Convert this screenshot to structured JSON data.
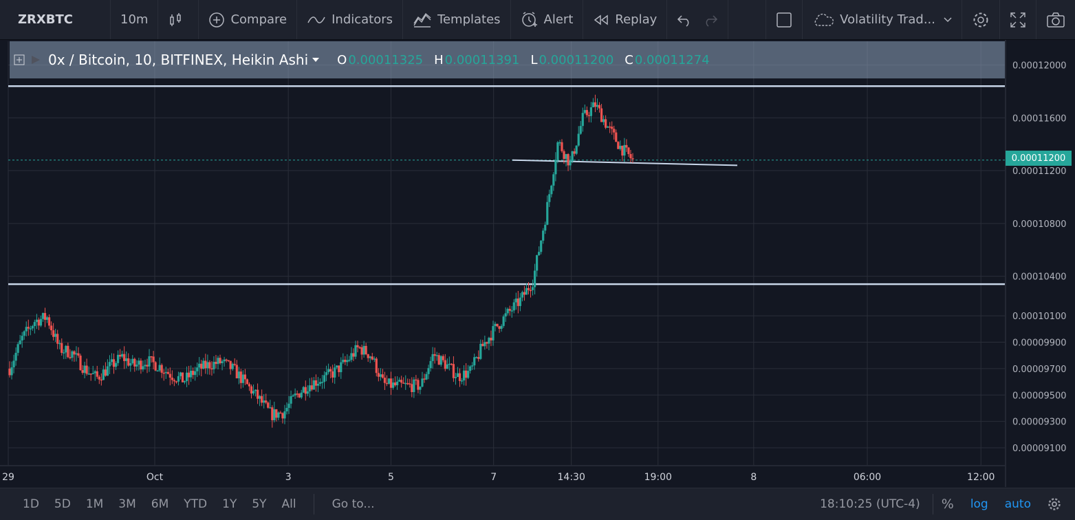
{
  "toolbar": {
    "symbol": "ZRXBTC",
    "interval": "10m",
    "compare": "Compare",
    "indicators": "Indicators",
    "templates": "Templates",
    "alert": "Alert",
    "replay": "Replay",
    "layout_name": "Volatility Trad..."
  },
  "legend": {
    "title": "0x / Bitcoin, 10, BITFINEX, Heikin Ashi",
    "o_label": "O",
    "o_value": "0.00011325",
    "h_label": "H",
    "h_value": "0.00011391",
    "l_label": "L",
    "l_value": "0.00011200",
    "c_label": "C",
    "c_value": "0.00011274"
  },
  "price_tag": "0.00011200",
  "bottom": {
    "ranges": [
      "1D",
      "5D",
      "1M",
      "3M",
      "6M",
      "YTD",
      "1Y",
      "5Y",
      "All"
    ],
    "goto": "Go to...",
    "clock": "18:10:25 (UTC-4)",
    "percent": "%",
    "log": "log",
    "auto": "auto"
  },
  "colors": {
    "up": "#26a69a",
    "down": "#ef5350",
    "background": "#131722",
    "grid": "#2a2e39",
    "line": "#c9d7ea",
    "accent": "#2196f3"
  },
  "chart_data": {
    "type": "candlestick",
    "title": "0x / Bitcoin, 10, BITFINEX, Heikin Ashi",
    "y_ticks": [
      "0.00012000",
      "0.00011600",
      "0.00011200",
      "0.00010800",
      "0.00010400",
      "0.00010100",
      "0.00009900",
      "0.00009700",
      "0.00009500",
      "0.00009300",
      "0.00009100"
    ],
    "y_tick_values": [
      0.00012,
      0.000116,
      0.000112,
      0.000108,
      0.000104,
      0.000101,
      9.9e-05,
      9.7e-05,
      9.5e-05,
      9.3e-05,
      9.1e-05
    ],
    "x_ticks": [
      "29",
      "Oct",
      "3",
      "5",
      "7",
      "14:30",
      "19:00",
      "8",
      "06:00",
      "12:00"
    ],
    "ylim": [
      8.97e-05,
      0.0001218
    ],
    "horizontal_levels": [
      0.0001184,
      0.0001034
    ],
    "trendline": [
      [
        0.0001128
      ],
      [
        0.0001124
      ]
    ],
    "last_price_line": 0.0001128,
    "series": [
      {
        "x": 0,
        "close": 9.7e-05
      },
      {
        "x": 1,
        "close": 9.93e-05
      },
      {
        "x": 2,
        "close": 0.0001006
      },
      {
        "x": 3,
        "close": 0.0001009
      },
      {
        "x": 4,
        "close": 9.85e-05
      },
      {
        "x": 5,
        "close": 9.82e-05
      },
      {
        "x": 6,
        "close": 9.7e-05
      },
      {
        "x": 7,
        "close": 9.63e-05
      },
      {
        "x": 8,
        "close": 9.71e-05
      },
      {
        "x": 9,
        "close": 9.79e-05
      },
      {
        "x": 10,
        "close": 9.72e-05
      },
      {
        "x": 11,
        "close": 9.76e-05
      },
      {
        "x": 12,
        "close": 9.72e-05
      },
      {
        "x": 13,
        "close": 9.65e-05
      },
      {
        "x": 14,
        "close": 9.61e-05
      },
      {
        "x": 15,
        "close": 9.69e-05
      },
      {
        "x": 16,
        "close": 9.73e-05
      },
      {
        "x": 17,
        "close": 9.75e-05
      },
      {
        "x": 18,
        "close": 9.69e-05
      },
      {
        "x": 19,
        "close": 9.58e-05
      },
      {
        "x": 20,
        "close": 9.47e-05
      },
      {
        "x": 21,
        "close": 9.35e-05
      },
      {
        "x": 22,
        "close": 9.37e-05
      },
      {
        "x": 23,
        "close": 9.5e-05
      },
      {
        "x": 24,
        "close": 9.58e-05
      },
      {
        "x": 25,
        "close": 9.62e-05
      },
      {
        "x": 26,
        "close": 9.67e-05
      },
      {
        "x": 27,
        "close": 9.75e-05
      },
      {
        "x": 28,
        "close": 9.86e-05
      },
      {
        "x": 29,
        "close": 9.8e-05
      },
      {
        "x": 30,
        "close": 9.58e-05
      },
      {
        "x": 31,
        "close": 9.57e-05
      },
      {
        "x": 32,
        "close": 9.57e-05
      },
      {
        "x": 33,
        "close": 9.57e-05
      },
      {
        "x": 34,
        "close": 9.81e-05
      },
      {
        "x": 35,
        "close": 9.73e-05
      },
      {
        "x": 36,
        "close": 9.64e-05
      },
      {
        "x": 37,
        "close": 9.68e-05
      },
      {
        "x": 38,
        "close": 9.88e-05
      },
      {
        "x": 39,
        "close": 0.0001001
      },
      {
        "x": 40,
        "close": 0.0001012
      },
      {
        "x": 41,
        "close": 0.0001022
      },
      {
        "x": 42,
        "close": 0.0001037
      },
      {
        "x": 43,
        "close": 0.0001085
      },
      {
        "x": 44,
        "close": 0.0001142
      },
      {
        "x": 45,
        "close": 0.0001125
      },
      {
        "x": 46,
        "close": 0.000116
      },
      {
        "x": 47,
        "close": 0.000117
      },
      {
        "x": 48,
        "close": 0.0001153
      },
      {
        "x": 49,
        "close": 0.0001138
      },
      {
        "x": 50,
        "close": 0.0001128
      }
    ]
  }
}
